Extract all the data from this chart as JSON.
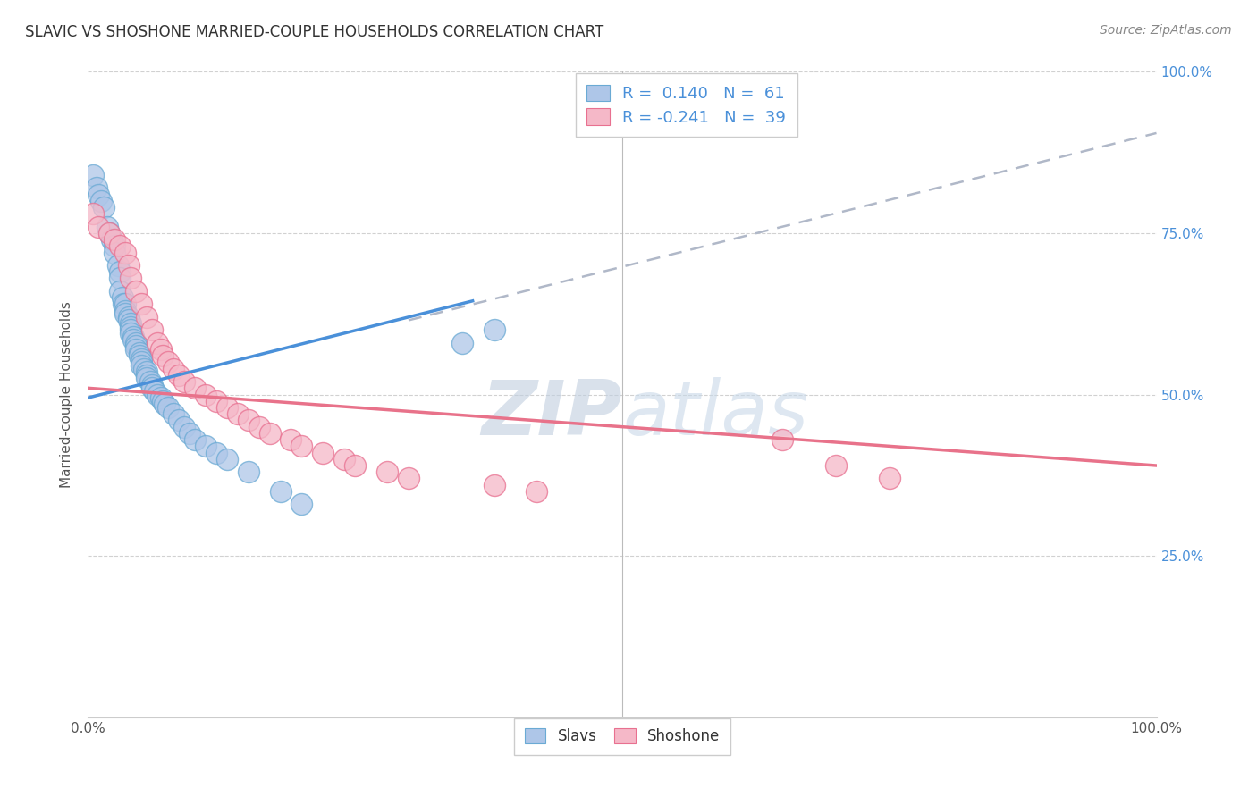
{
  "title": "SLAVIC VS SHOSHONE MARRIED-COUPLE HOUSEHOLDS CORRELATION CHART",
  "source": "Source: ZipAtlas.com",
  "ylabel": "Married-couple Households",
  "xlim": [
    0,
    1
  ],
  "ylim": [
    0,
    1
  ],
  "slavs_R": 0.14,
  "slavs_N": 61,
  "shoshone_R": -0.241,
  "shoshone_N": 39,
  "slavs_color": "#aec6e8",
  "shoshone_color": "#f5b8c8",
  "slavs_edge_color": "#6aaad4",
  "shoshone_edge_color": "#e87090",
  "slavs_line_color": "#4a90d9",
  "shoshone_line_color": "#e8728a",
  "dash_line_color": "#b0b8c8",
  "background_color": "#ffffff",
  "grid_color": "#cccccc",
  "title_color": "#333333",
  "axis_label_color": "#555555",
  "right_tick_color": "#4a90d9",
  "legend_text_color": "#333333",
  "legend_value_color": "#4a90d9",
  "watermark_zip_color": "#c0cedf",
  "watermark_atlas_color": "#c8d8e8",
  "slavs_x": [
    0.005,
    0.008,
    0.01,
    0.012,
    0.015,
    0.018,
    0.02,
    0.022,
    0.025,
    0.025,
    0.028,
    0.03,
    0.03,
    0.03,
    0.032,
    0.033,
    0.035,
    0.035,
    0.035,
    0.038,
    0.038,
    0.04,
    0.04,
    0.04,
    0.04,
    0.042,
    0.042,
    0.045,
    0.045,
    0.045,
    0.048,
    0.048,
    0.05,
    0.05,
    0.05,
    0.052,
    0.055,
    0.055,
    0.055,
    0.058,
    0.06,
    0.06,
    0.062,
    0.065,
    0.068,
    0.07,
    0.072,
    0.075,
    0.08,
    0.085,
    0.09,
    0.095,
    0.1,
    0.11,
    0.12,
    0.13,
    0.15,
    0.18,
    0.2,
    0.35,
    0.38
  ],
  "slavs_y": [
    0.84,
    0.82,
    0.81,
    0.8,
    0.79,
    0.76,
    0.75,
    0.74,
    0.73,
    0.72,
    0.7,
    0.69,
    0.68,
    0.66,
    0.65,
    0.64,
    0.64,
    0.63,
    0.625,
    0.62,
    0.615,
    0.61,
    0.605,
    0.6,
    0.595,
    0.59,
    0.585,
    0.58,
    0.575,
    0.57,
    0.565,
    0.56,
    0.555,
    0.55,
    0.545,
    0.54,
    0.535,
    0.53,
    0.525,
    0.52,
    0.515,
    0.51,
    0.505,
    0.5,
    0.495,
    0.49,
    0.485,
    0.48,
    0.47,
    0.46,
    0.45,
    0.44,
    0.43,
    0.42,
    0.41,
    0.4,
    0.38,
    0.35,
    0.33,
    0.58,
    0.6
  ],
  "shoshone_x": [
    0.005,
    0.01,
    0.02,
    0.025,
    0.03,
    0.035,
    0.038,
    0.04,
    0.045,
    0.05,
    0.055,
    0.06,
    0.065,
    0.068,
    0.07,
    0.075,
    0.08,
    0.085,
    0.09,
    0.1,
    0.11,
    0.12,
    0.13,
    0.14,
    0.15,
    0.16,
    0.17,
    0.19,
    0.2,
    0.22,
    0.24,
    0.25,
    0.28,
    0.3,
    0.38,
    0.42,
    0.65,
    0.7,
    0.75
  ],
  "shoshone_y": [
    0.78,
    0.76,
    0.75,
    0.74,
    0.73,
    0.72,
    0.7,
    0.68,
    0.66,
    0.64,
    0.62,
    0.6,
    0.58,
    0.57,
    0.56,
    0.55,
    0.54,
    0.53,
    0.52,
    0.51,
    0.5,
    0.49,
    0.48,
    0.47,
    0.46,
    0.45,
    0.44,
    0.43,
    0.42,
    0.41,
    0.4,
    0.39,
    0.38,
    0.37,
    0.36,
    0.35,
    0.43,
    0.39,
    0.37
  ],
  "slavs_line_x0": 0.0,
  "slavs_line_y0": 0.495,
  "slavs_line_x1": 0.36,
  "slavs_line_y1": 0.645,
  "dash_line_x0": 0.3,
  "dash_line_y0": 0.615,
  "dash_line_x1": 1.0,
  "dash_line_y1": 0.905,
  "shoshone_line_x0": 0.0,
  "shoshone_line_y0": 0.51,
  "shoshone_line_x1": 1.0,
  "shoshone_line_y1": 0.39
}
